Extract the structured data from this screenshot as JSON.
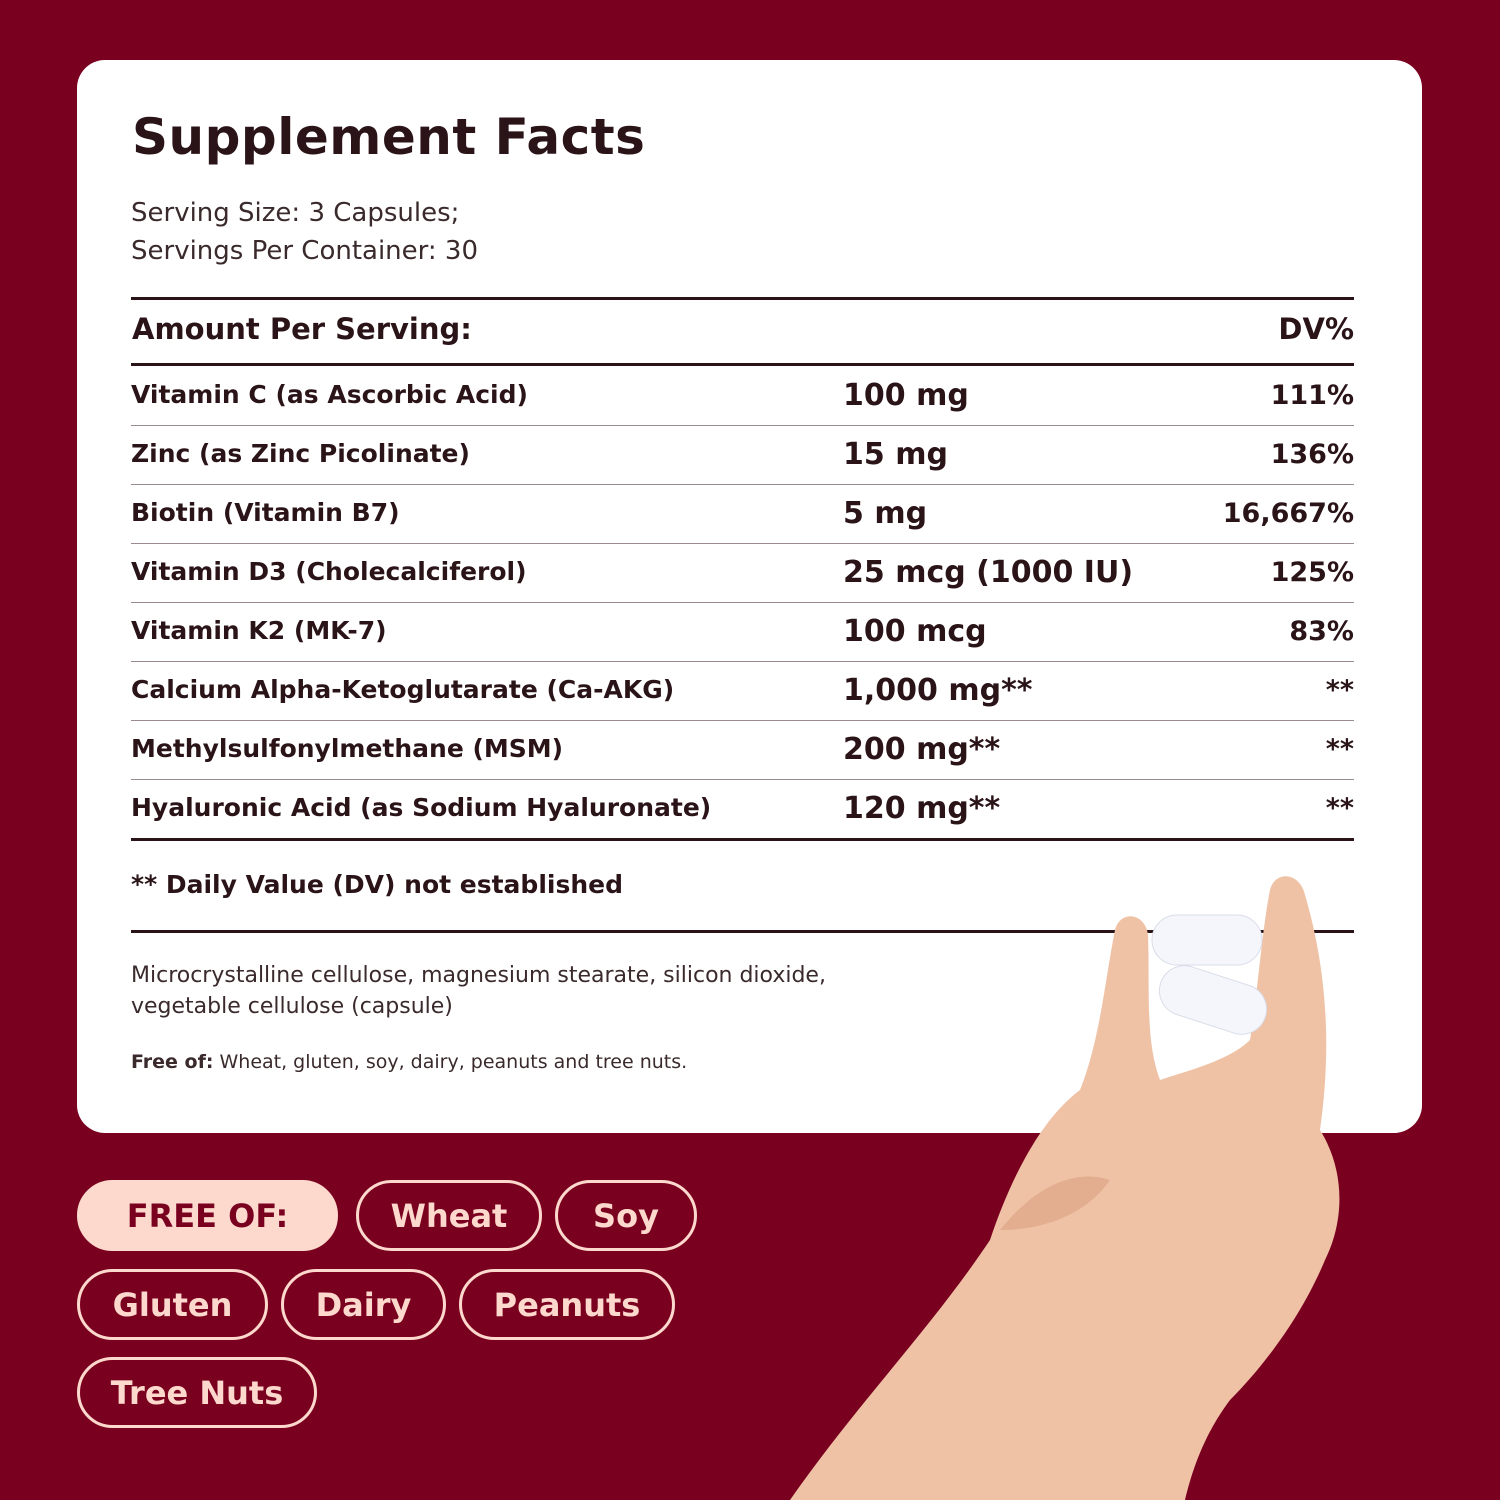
{
  "colors": {
    "background": "#7a0020",
    "card": "#ffffff",
    "text": "#2a1418",
    "pill": "#fcd9cc"
  },
  "title": "Supplement Facts",
  "serving_size": "Serving Size: 3 Capsules;",
  "servings_per_container": "Servings Per Container: 30",
  "header": {
    "amount": "Amount Per Serving:",
    "dv": "DV%"
  },
  "rows": [
    {
      "name": "Vitamin C (as Ascorbic Acid)",
      "amount": "100 mg",
      "dv": "111%"
    },
    {
      "name": "Zinc (as Zinc Picolinate)",
      "amount": "15 mg",
      "dv": "136%"
    },
    {
      "name": "Biotin (Vitamin B7)",
      "amount": "5 mg",
      "dv": "16,667%"
    },
    {
      "name": "Vitamin D3 (Cholecalciferol)",
      "amount": "25 mcg (1000 IU)",
      "dv": "125%"
    },
    {
      "name": "Vitamin K2 (MK-7)",
      "amount": "100 mcg",
      "dv": "83%"
    },
    {
      "name": "Calcium Alpha-Ketoglutarate (Ca-AKG)",
      "amount": "1,000 mg**",
      "dv": "**"
    },
    {
      "name": "Methylsulfonylmethane (MSM)",
      "amount": "200 mg**",
      "dv": "**"
    },
    {
      "name": "Hyaluronic Acid (as Sodium Hyaluronate)",
      "amount": "120 mg**",
      "dv": "**"
    }
  ],
  "footnote": "** Daily Value (DV) not established",
  "other_ingredients_1": "Microcrystalline cellulose, magnesium stearate, silicon dioxide,",
  "other_ingredients_2": "vegetable cellulose (capsule)",
  "free_of_label": "Free of:",
  "free_of_text": " Wheat, gluten, soy, dairy, peanuts and tree nuts.",
  "badges": {
    "heading": "FREE OF:",
    "items": [
      "Wheat",
      "Soy",
      "Gluten",
      "Dairy",
      "Peanuts",
      "Tree Nuts"
    ]
  }
}
